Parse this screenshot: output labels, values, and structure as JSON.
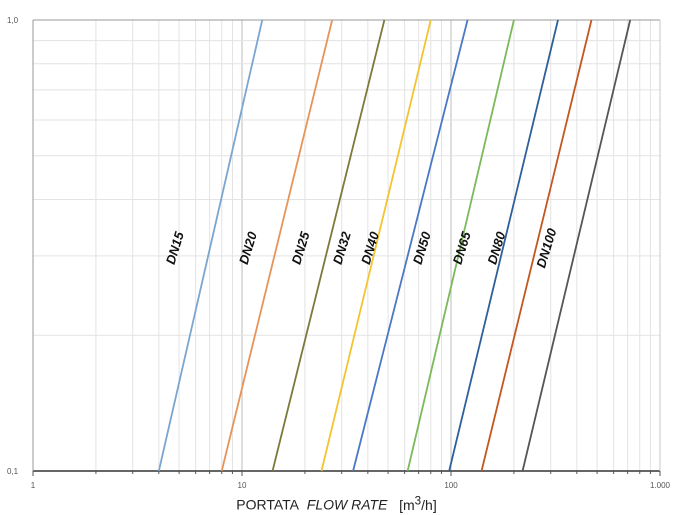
{
  "chart_data": {
    "type": "line",
    "x_scale": "log",
    "y_scale": "log",
    "xlim": [
      1,
      1000
    ],
    "ylim": [
      0.1,
      1.0
    ],
    "grid": true,
    "x_ticks": [
      {
        "value": 1,
        "label": "1"
      },
      {
        "value": 10,
        "label": "10"
      },
      {
        "value": 100,
        "label": "100"
      },
      {
        "value": 1000,
        "label": "1.000"
      }
    ],
    "y_ticks": [
      {
        "value": 0.1,
        "label": "0,1"
      },
      {
        "value": 1.0,
        "label": "1,0"
      }
    ],
    "xlabel": {
      "part1": "PORTATA",
      "part2": "FLOW RATE",
      "part3": "[m",
      "sup": "3",
      "part4": "/h]"
    },
    "series": [
      {
        "name": "DN15",
        "color": "#7aa6cf",
        "x": [
          4.0,
          12.5
        ],
        "y": [
          0.1,
          1.0
        ]
      },
      {
        "name": "DN20",
        "color": "#e8935a",
        "x": [
          8.0,
          27.0
        ],
        "y": [
          0.1,
          1.0
        ]
      },
      {
        "name": "DN25",
        "color": "#7a7a3a",
        "x": [
          14.0,
          48.0
        ],
        "y": [
          0.1,
          1.0
        ]
      },
      {
        "name": "DN32",
        "color": "#f2c431",
        "x": [
          24.0,
          80.0
        ],
        "y": [
          0.1,
          1.0
        ]
      },
      {
        "name": "DN40",
        "color": "#4a78c4",
        "x": [
          34.0,
          120.0
        ],
        "y": [
          0.1,
          1.0
        ]
      },
      {
        "name": "DN50",
        "color": "#7cb95a",
        "x": [
          62.0,
          200.0
        ],
        "y": [
          0.1,
          1.0
        ]
      },
      {
        "name": "DN65",
        "color": "#2f5f9a",
        "x": [
          98.0,
          325.0
        ],
        "y": [
          0.1,
          1.0
        ]
      },
      {
        "name": "DN80",
        "color": "#c4561f",
        "x": [
          140.0,
          470.0
        ],
        "y": [
          0.1,
          1.0
        ]
      },
      {
        "name": "DN100",
        "color": "#555555",
        "x": [
          220.0,
          720.0
        ],
        "y": [
          0.1,
          1.0
        ]
      }
    ],
    "annotations": [
      {
        "text": "DN15",
        "x": 5.0,
        "y": 0.31
      },
      {
        "text": "DN20",
        "x": 11.2,
        "y": 0.31
      },
      {
        "text": "DN25",
        "x": 20.0,
        "y": 0.31
      },
      {
        "text": "DN32",
        "x": 31.5,
        "y": 0.31
      },
      {
        "text": "DN40",
        "x": 43.0,
        "y": 0.31
      },
      {
        "text": "DN50",
        "x": 76.0,
        "y": 0.31
      },
      {
        "text": "DN65",
        "x": 118.0,
        "y": 0.31
      },
      {
        "text": "DN80",
        "x": 173.0,
        "y": 0.31
      },
      {
        "text": "DN100",
        "x": 300.0,
        "y": 0.31
      }
    ]
  }
}
